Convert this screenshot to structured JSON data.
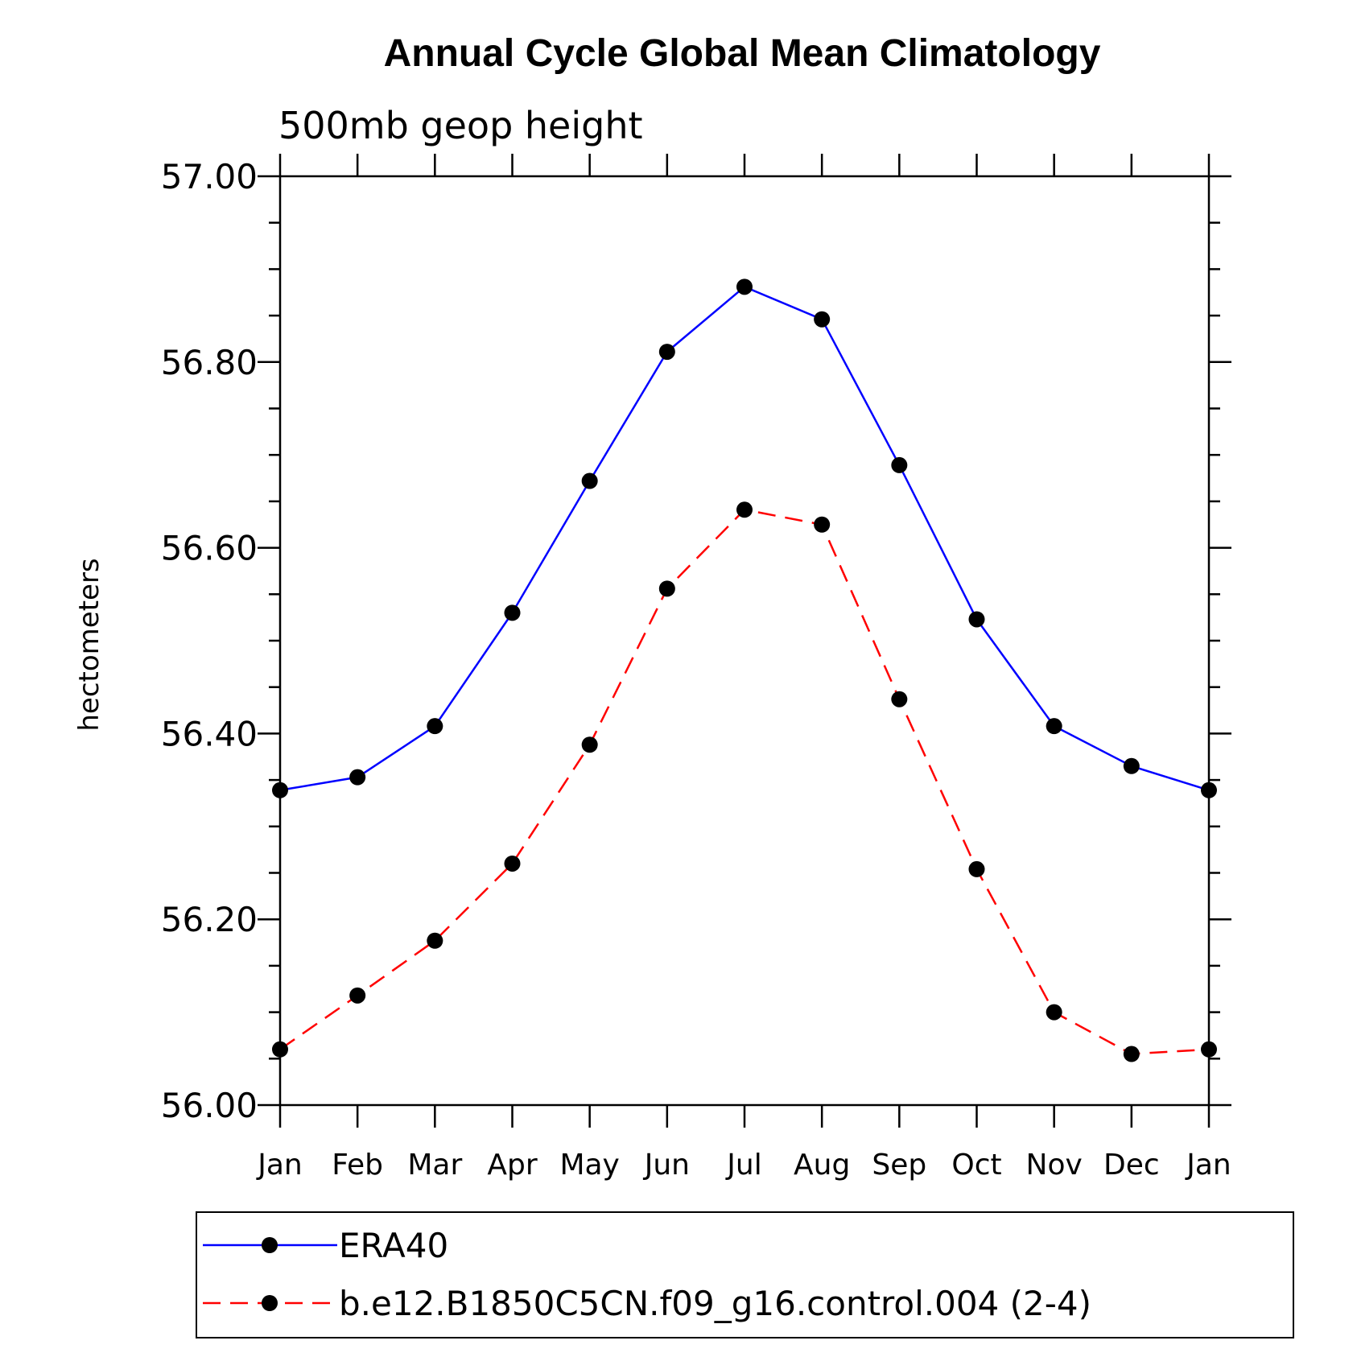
{
  "chart_data": {
    "type": "line",
    "title": "Annual Cycle Global Mean Climatology",
    "subtitle": "500mb geop height",
    "ylabel": "hectometers",
    "xlabel": "",
    "categories": [
      "Jan",
      "Feb",
      "Mar",
      "Apr",
      "May",
      "Jun",
      "Jul",
      "Aug",
      "Sep",
      "Oct",
      "Nov",
      "Dec",
      "Jan"
    ],
    "ylim": [
      56.0,
      57.0
    ],
    "yticks": [
      "56.00",
      "56.20",
      "56.40",
      "56.60",
      "56.80",
      "57.00"
    ],
    "grid": false,
    "legend_position": "bottom",
    "series": [
      {
        "name": "ERA40",
        "color": "#0000ff",
        "dash": "solid",
        "marker": "filled-circle",
        "values": [
          56.339,
          56.353,
          56.408,
          56.53,
          56.672,
          56.811,
          56.881,
          56.846,
          56.689,
          56.523,
          56.408,
          56.365,
          56.339
        ]
      },
      {
        "name": "b.e12.B1850C5CN.f09_g16.control.004 (2-4)",
        "color": "#ff0000",
        "dash": "dashed",
        "marker": "filled-circle",
        "values": [
          56.06,
          56.118,
          56.177,
          56.26,
          56.388,
          56.556,
          56.641,
          56.625,
          56.437,
          56.254,
          56.1,
          56.055,
          56.06
        ]
      }
    ]
  }
}
